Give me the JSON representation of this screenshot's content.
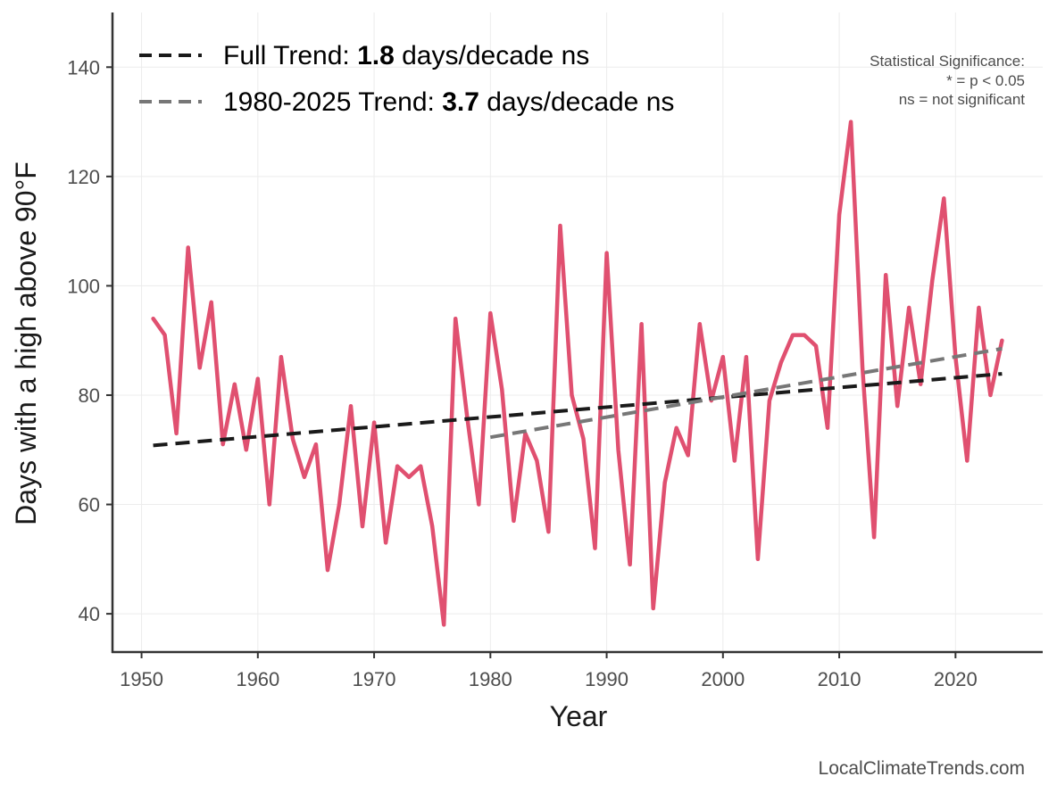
{
  "chart_data": {
    "type": "line",
    "xlabel": "Year",
    "ylabel": "Days with a high above 90°F",
    "xlim": [
      1947.5,
      2027.5
    ],
    "ylim": [
      33,
      150
    ],
    "x_ticks": [
      1950,
      1960,
      1970,
      1980,
      1990,
      2000,
      2010,
      2020
    ],
    "y_ticks": [
      40,
      60,
      80,
      100,
      120,
      140
    ],
    "grid": true,
    "colors": {
      "series": "#e05070",
      "full_trend": "#1a1a1a",
      "recent_trend": "#777777",
      "axis": "#333333",
      "grid": "#ececec"
    },
    "series": [
      {
        "x": [
          1951,
          1952,
          1953,
          1954,
          1955,
          1956,
          1957,
          1958,
          1959,
          1960,
          1961,
          1962,
          1963,
          1964,
          1965,
          1966,
          1967,
          1968,
          1969,
          1970,
          1971,
          1972,
          1973,
          1974,
          1975,
          1976,
          1977,
          1978,
          1979,
          1980,
          1981,
          1982,
          1983,
          1984,
          1985,
          1986,
          1987,
          1988,
          1989,
          1990,
          1991,
          1992,
          1993,
          1994,
          1995,
          1996,
          1997,
          1998,
          1999,
          2000,
          2001,
          2002,
          2003,
          2004,
          2005,
          2006,
          2007,
          2008,
          2009,
          2010,
          2011,
          2012,
          2013,
          2014,
          2015,
          2016,
          2017,
          2018,
          2019,
          2020,
          2021,
          2022,
          2023,
          2024
        ],
        "values": [
          94,
          91,
          73,
          107,
          85,
          97,
          71,
          82,
          70,
          83,
          60,
          87,
          72,
          65,
          71,
          48,
          60,
          78,
          56,
          75,
          53,
          67,
          65,
          67,
          56,
          38,
          94,
          76,
          60,
          95,
          81,
          57,
          73,
          68,
          55,
          111,
          80,
          72,
          52,
          106,
          70,
          49,
          93,
          41,
          64,
          74,
          69,
          93,
          79,
          87,
          68,
          87,
          50,
          79,
          86,
          91,
          91,
          89,
          74,
          113,
          130,
          85,
          54,
          102,
          78,
          96,
          82,
          101,
          116,
          87,
          68,
          96,
          80,
          90
        ]
      }
    ],
    "trends": [
      {
        "x": [
          1951,
          2024
        ],
        "values": [
          70.8,
          83.9
        ]
      },
      {
        "x": [
          1980,
          2024
        ],
        "values": [
          72.3,
          88.5
        ]
      }
    ],
    "legend": {
      "placement": "top-left",
      "full": {
        "prefix": "Full Trend: ",
        "value": "1.8",
        "suffix": " days/decade ns"
      },
      "recent": {
        "prefix": "1980-2025 Trend: ",
        "value": "3.7",
        "suffix": " days/decade ns"
      }
    },
    "significance_note": [
      "Statistical Significance:",
      "* = p < 0.05",
      "ns = not significant"
    ],
    "source": "LocalClimateTrends.com"
  }
}
